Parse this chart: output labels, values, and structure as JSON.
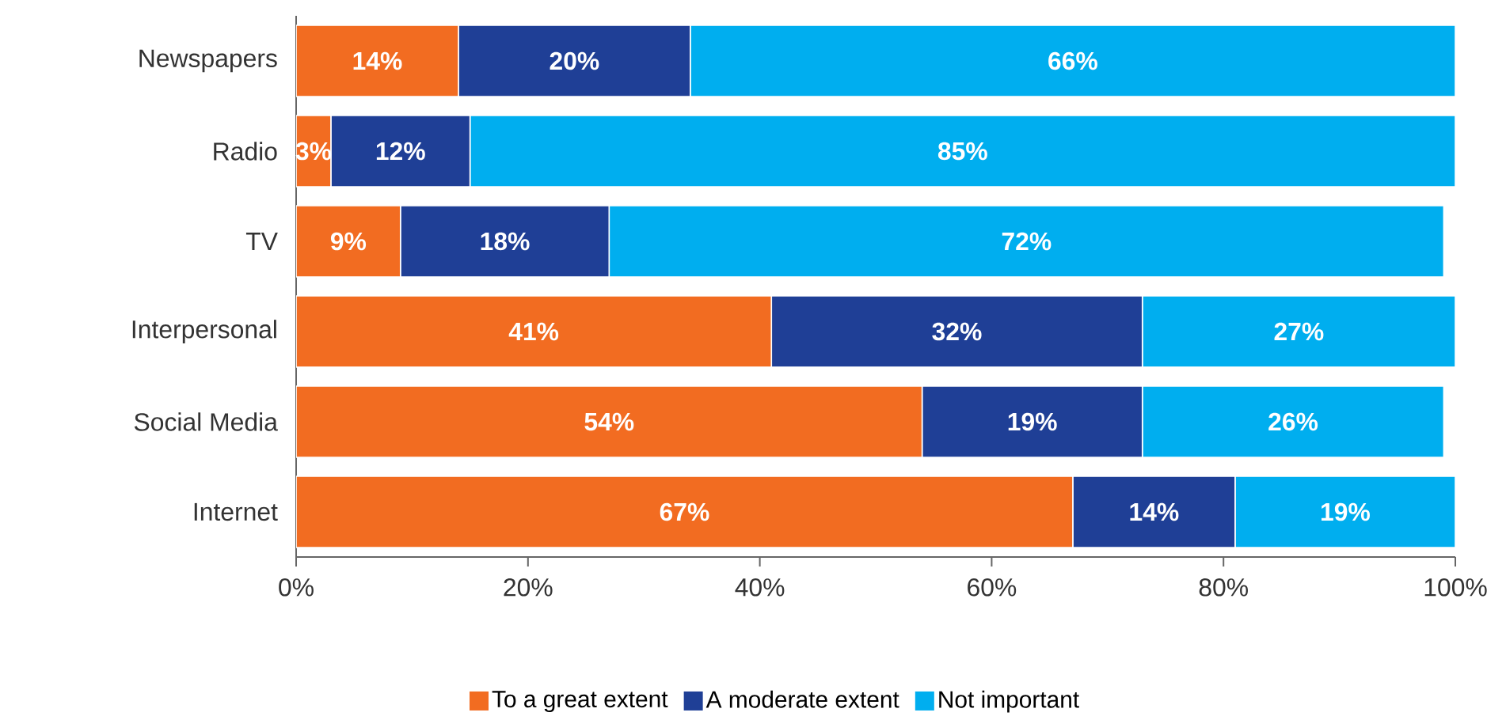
{
  "chart_data": {
    "type": "bar",
    "orientation": "horizontal",
    "stacked": true,
    "categories": [
      "Newspapers",
      "Radio",
      "TV",
      "Interpersonal",
      "Social Media",
      "Internet"
    ],
    "series": [
      {
        "name": "To a great extent",
        "color": "#f26c21",
        "values": [
          14,
          3,
          9,
          41,
          54,
          67
        ],
        "value_labels": [
          "14%",
          "3%",
          "9%",
          "41%",
          "54%",
          "67%"
        ]
      },
      {
        "name": "A moderate extent",
        "color": "#1f3f96",
        "values": [
          20,
          12,
          18,
          32,
          19,
          14
        ],
        "value_labels": [
          "20%",
          "12%",
          "18%",
          "32%",
          "19%",
          "14%"
        ]
      },
      {
        "name": "Not important",
        "color": "#00aeef",
        "values": [
          66,
          85,
          72,
          27,
          26,
          19
        ],
        "value_labels": [
          "66%",
          "85%",
          "72%",
          "27%",
          "26%",
          "19%"
        ]
      }
    ],
    "xlim": [
      0,
      100
    ],
    "xticks": [
      {
        "value": 0,
        "label": "0%"
      },
      {
        "value": 20,
        "label": "20%"
      },
      {
        "value": 40,
        "label": "40%"
      },
      {
        "value": 60,
        "label": "60%"
      },
      {
        "value": 80,
        "label": "80%"
      },
      {
        "value": 100,
        "label": "100%"
      }
    ],
    "grid": false,
    "legend": "bottom"
  }
}
